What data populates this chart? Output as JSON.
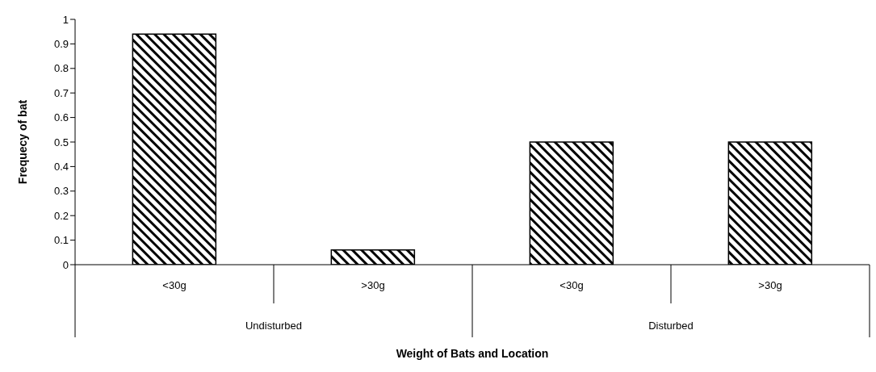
{
  "chart_data": {
    "type": "bar",
    "xlabel": "Weight of Bats and Location",
    "ylabel": "Frequecy of bat",
    "categories": [
      "<30g",
      ">30g",
      "<30g",
      ">30g"
    ],
    "values": [
      0.94,
      0.06,
      0.5,
      0.5
    ],
    "color": "#000000",
    "ylim": [
      0,
      1
    ],
    "yticks": [
      0,
      0.1,
      0.2,
      0.3,
      0.4,
      0.5,
      0.6,
      0.7,
      0.8,
      0.9,
      1
    ],
    "grid": false,
    "annotations": [
      "Undisturbed",
      "Disturbed"
    ]
  }
}
